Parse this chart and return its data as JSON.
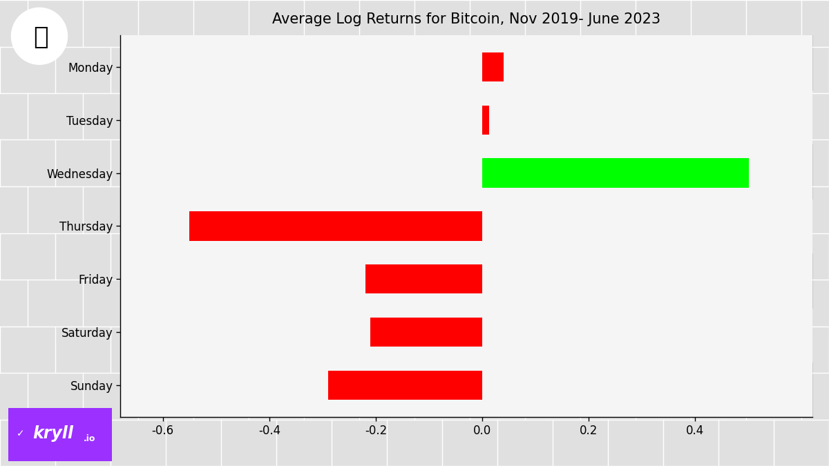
{
  "title": "Average Log Returns for Bitcoin, Nov 2019- June 2023",
  "days": [
    "Monday",
    "Tuesday",
    "Wednesday",
    "Thursday",
    "Friday",
    "Saturday",
    "Sunday"
  ],
  "values": [
    0.04,
    0.013,
    0.5,
    -0.55,
    -0.22,
    -0.21,
    -0.29
  ],
  "colors": [
    "#ff0000",
    "#ff0000",
    "#00ff00",
    "#ff0000",
    "#ff0000",
    "#ff0000",
    "#ff0000"
  ],
  "xlim": [
    -0.68,
    0.62
  ],
  "xticks": [
    -0.6,
    -0.4,
    -0.2,
    0.0,
    0.2,
    0.4
  ],
  "background_color": "#e0e0e0",
  "plot_bg_color": "#f5f5f5",
  "bar_height": 0.55,
  "title_fontsize": 15,
  "tick_fontsize": 12,
  "label_fontsize": 12,
  "kryll_bg_color": "#9b30ff"
}
